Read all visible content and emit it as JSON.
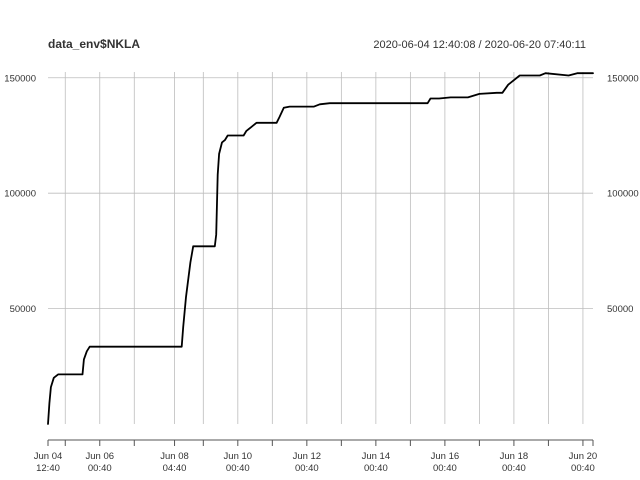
{
  "chart_data": {
    "type": "line",
    "title": "data_env$NKLA",
    "subtitle": "2020-06-04 12:40:08 / 2020-06-20 07:40:11",
    "grid": true,
    "xlim": [
      "2020-06-04 12:40",
      "2020-06-20 07:40"
    ],
    "ylim": [
      0,
      152500
    ],
    "y_ticks": [
      50000,
      100000,
      150000
    ],
    "y_tick_labels": [
      "50000",
      "100000",
      "150000"
    ],
    "y_axis_sides": [
      "left",
      "right"
    ],
    "x_ticks": [
      {
        "t": "2020-06-04 12:40",
        "line1": "Jun 04",
        "line2": "12:40"
      },
      {
        "t": "2020-06-06 00:40",
        "line1": "Jun 06",
        "line2": "00:40"
      },
      {
        "t": "2020-06-08 04:40",
        "line1": "Jun 08",
        "line2": "04:40"
      },
      {
        "t": "2020-06-10 00:40",
        "line1": "Jun 10",
        "line2": "00:40"
      },
      {
        "t": "2020-06-12 00:40",
        "line1": "Jun 12",
        "line2": "00:40"
      },
      {
        "t": "2020-06-14 00:40",
        "line1": "Jun 14",
        "line2": "00:40"
      },
      {
        "t": "2020-06-16 00:40",
        "line1": "Jun 16",
        "line2": "00:40"
      },
      {
        "t": "2020-06-18 00:40",
        "line1": "Jun 18",
        "line2": "00:40"
      },
      {
        "t": "2020-06-20 00:40",
        "line1": "Jun 20",
        "line2": "00:40"
      }
    ],
    "x_minor_ticks": [
      "2020-06-05 00:40",
      "2020-06-07 00:40",
      "2020-06-09 00:40",
      "2020-06-11 00:40",
      "2020-06-13 00:40",
      "2020-06-15 00:40",
      "2020-06-17 00:40",
      "2020-06-19 00:40"
    ],
    "series": [
      {
        "color": "#000000",
        "x": [
          "2020-06-04 12:40",
          "2020-06-04 13:40",
          "2020-06-04 14:40",
          "2020-06-04 16:40",
          "2020-06-04 19:40",
          "2020-06-05 00:40",
          "2020-06-05 12:40",
          "2020-06-05 13:40",
          "2020-06-05 15:40",
          "2020-06-05 17:40",
          "2020-06-05 20:40",
          "2020-06-06 00:40",
          "2020-06-07 06:40",
          "2020-06-08 09:40",
          "2020-06-08 10:40",
          "2020-06-08 12:40",
          "2020-06-08 15:40",
          "2020-06-08 17:40",
          "2020-06-08 18:40",
          "2020-06-09 08:40",
          "2020-06-09 09:40",
          "2020-06-09 10:40",
          "2020-06-09 11:40",
          "2020-06-09 13:40",
          "2020-06-09 15:40",
          "2020-06-09 17:40",
          "2020-06-10 04:40",
          "2020-06-10 06:40",
          "2020-06-10 09:40",
          "2020-06-10 13:40",
          "2020-06-11 03:40",
          "2020-06-11 05:40",
          "2020-06-11 08:40",
          "2020-06-11 12:40",
          "2020-06-12 05:40",
          "2020-06-12 09:40",
          "2020-06-12 16:40",
          "2020-06-13 00:40",
          "2020-06-14 12:40",
          "2020-06-15 12:40",
          "2020-06-15 14:40",
          "2020-06-15 20:40",
          "2020-06-16 04:40",
          "2020-06-16 16:40",
          "2020-06-17 00:40",
          "2020-06-17 12:40",
          "2020-06-17 16:40",
          "2020-06-17 20:40",
          "2020-06-18 04:40",
          "2020-06-18 18:40",
          "2020-06-18 22:40",
          "2020-06-19 14:40",
          "2020-06-19 20:40",
          "2020-06-20 07:40"
        ],
        "y": [
          0,
          9000,
          16000,
          20000,
          21500,
          21500,
          21500,
          28000,
          31500,
          33500,
          33500,
          33500,
          33500,
          33500,
          42000,
          55000,
          70000,
          77000,
          77000,
          77000,
          82000,
          108000,
          117000,
          122000,
          123000,
          125000,
          125000,
          127000,
          128500,
          130500,
          130500,
          133000,
          137000,
          137500,
          137500,
          138500,
          139000,
          139000,
          139000,
          139000,
          141000,
          141000,
          141500,
          141500,
          143000,
          143500,
          143500,
          147000,
          151000,
          151000,
          152000,
          151000,
          152000,
          152000
        ]
      }
    ]
  }
}
